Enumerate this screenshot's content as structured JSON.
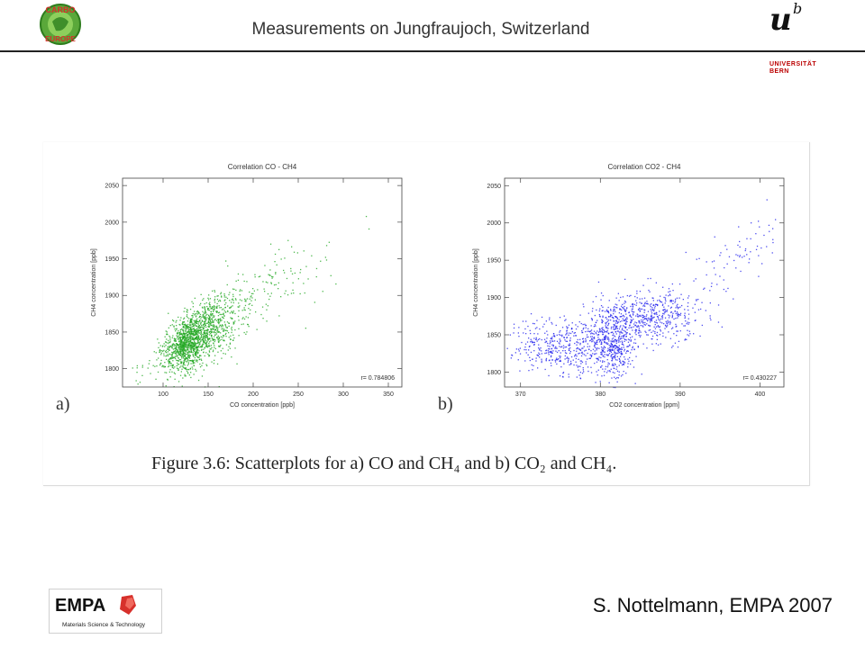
{
  "header": {
    "title": "Measurements on Jungfraujoch, Switzerland"
  },
  "logos": {
    "carbo": {
      "word1": "CARBO",
      "word2": "EUROPE"
    },
    "unibern": {
      "mark": "u",
      "sup": "b",
      "line1": "UNIVERSITÄT",
      "line2": "BERN"
    },
    "empa": {
      "name": "EMPA",
      "tagline": "Materials Science & Technology"
    }
  },
  "figure": {
    "panel_a_label": "a)",
    "panel_b_label": "b)",
    "caption": "Figure 3.6: Scatterplots for a) CO and CH₄ and b) CO₂ and CH₄."
  },
  "chart_data": [
    {
      "type": "scatter",
      "title": "Correlation CO - CH4",
      "xlabel": "CO concentration [ppb]",
      "ylabel": "CH4 concentration [ppb]",
      "xlim": [
        55,
        365
      ],
      "ylim": [
        1775,
        2060
      ],
      "xticks": [
        100,
        150,
        200,
        250,
        300,
        350
      ],
      "yticks": [
        1800,
        1850,
        1900,
        1950,
        2000,
        2050
      ],
      "annotation": "r= 0.784806",
      "color": "#22a822",
      "point_count": 1800,
      "trend": {
        "intercept": 1738,
        "slope": 0.78,
        "x_center": 118,
        "x_spread": 45,
        "y_spread": 16
      }
    },
    {
      "type": "scatter",
      "title": "Correlation CO2 - CH4",
      "xlabel": "CO2 concentration [ppm]",
      "ylabel": "CH4 concentration [ppb]",
      "xlim": [
        368,
        403
      ],
      "ylim": [
        1780,
        2060
      ],
      "xticks": [
        370,
        380,
        390,
        400
      ],
      "yticks": [
        1800,
        1850,
        1900,
        1950,
        2000,
        2050
      ],
      "annotation": "r= 0.430227",
      "color": "#2222ee",
      "point_count": 1500,
      "clusters": [
        {
          "x": 375.5,
          "y": 1835,
          "sx": 3.5,
          "sy": 18
        },
        {
          "x": 381.5,
          "y": 1840,
          "sx": 1.6,
          "sy": 25
        },
        {
          "x": 386,
          "y": 1875,
          "sx": 3.0,
          "sy": 18
        }
      ]
    }
  ],
  "footer": {
    "author": "S. Nottelmann, EMPA 2007"
  }
}
